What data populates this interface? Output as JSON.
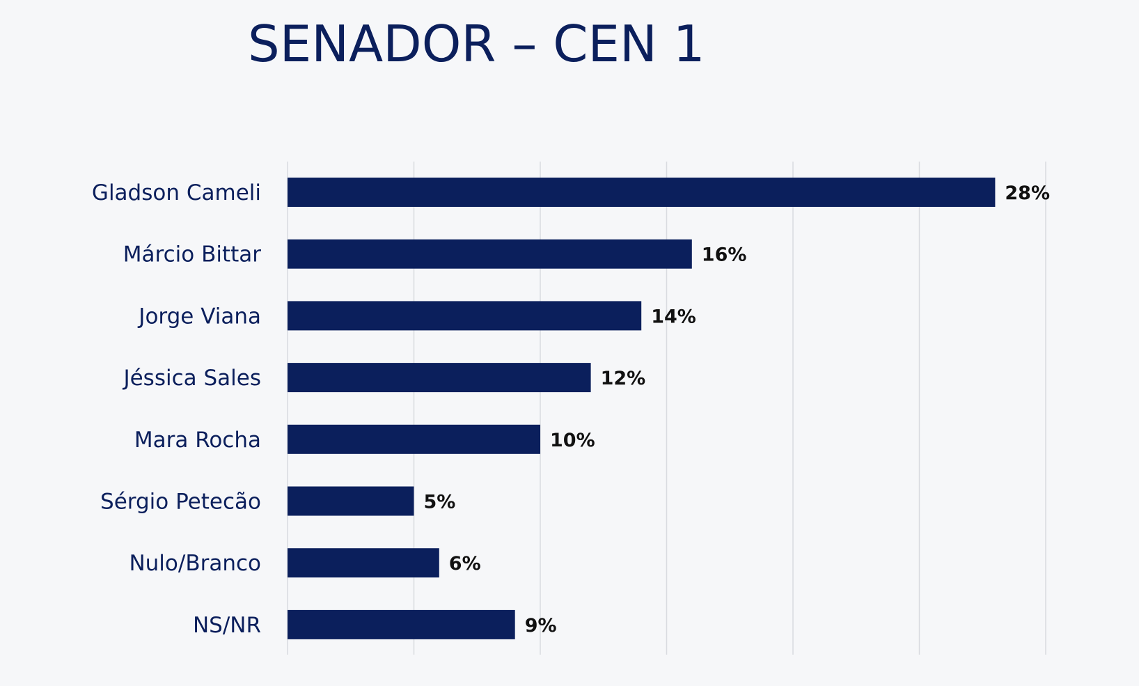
{
  "chart_data": {
    "type": "bar",
    "orientation": "horizontal",
    "title": "SENADOR – CEN 1",
    "categories": [
      "Gladson Cameli",
      "Márcio Bittar",
      "Jorge Viana",
      "Jéssica Sales",
      "Mara Rocha",
      "Sérgio Petecão",
      "Nulo/Branco",
      "NS/NR"
    ],
    "values": [
      28,
      16,
      14,
      12,
      10,
      5,
      6,
      9
    ],
    "value_labels": [
      "28%",
      "16%",
      "14%",
      "12%",
      "10%",
      "5%",
      "6%",
      "9%"
    ],
    "xlim": [
      0,
      30
    ],
    "grid_step": 5,
    "grid": true,
    "xlabel": "",
    "ylabel": "",
    "colors": {
      "bar": "#0b1f5c",
      "title": "#0b1f5c",
      "category_text": "#0b1f5c",
      "value_text": "#111111",
      "grid": "#d9dbe0",
      "background": "#f6f7f9"
    }
  }
}
